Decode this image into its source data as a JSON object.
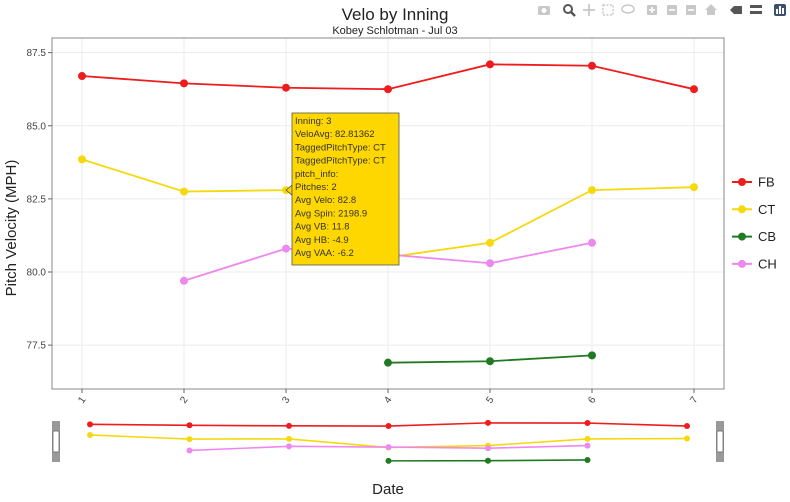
{
  "colors": {
    "FB": "#ee1c1c",
    "CT": "#f5d90e",
    "CB": "#217a21",
    "CH": "#ee88ee",
    "tooltip_bg": "#ffd700",
    "grid": "#ebebeb",
    "panel_border": "#888888"
  },
  "modebar_icons": [
    "camera-icon",
    "zoom-icon",
    "pan-icon",
    "box-select-icon",
    "lasso-icon",
    "zoom-in-icon",
    "zoom-out-icon",
    "autoscale-icon",
    "home-icon",
    "spike-icon",
    "compare-icon",
    "plotly-logo-icon"
  ],
  "chart_data": {
    "type": "line",
    "title": "Velo by Inning",
    "subtitle": "Kobey Schlotman - Jul 03",
    "xlabel": "Date",
    "ylabel": "Pitch Velocity (MPH)",
    "x": [
      1,
      2,
      3,
      4,
      5,
      6,
      7
    ],
    "x_tick_labels": [
      "1",
      "2",
      "3",
      "4",
      "5",
      "6",
      "7"
    ],
    "ylim": [
      76.0,
      88.0
    ],
    "y_ticks": [
      77.5,
      80.0,
      82.5,
      85.0,
      87.5
    ],
    "y_tick_labels": [
      "77.5",
      "80.0",
      "82.5",
      "85.0",
      "87.5"
    ],
    "grid": true,
    "legend_position": "right",
    "series": [
      {
        "name": "FB",
        "x": [
          1,
          2,
          3,
          4,
          5,
          6,
          7
        ],
        "values": [
          86.7,
          86.45,
          86.3,
          86.25,
          87.1,
          87.05,
          86.25
        ]
      },
      {
        "name": "CT",
        "x": [
          1,
          2,
          3,
          4,
          5,
          6,
          7
        ],
        "values": [
          83.85,
          82.75,
          82.8,
          80.5,
          81.0,
          82.8,
          82.9
        ]
      },
      {
        "name": "CB",
        "x": [
          4,
          5,
          6
        ],
        "values": [
          76.9,
          76.95,
          77.15
        ]
      },
      {
        "name": "CH",
        "x": [
          2,
          3,
          4,
          5,
          6
        ],
        "values": [
          79.7,
          80.8,
          80.6,
          80.3,
          81.0
        ]
      }
    ],
    "hover_point": {
      "series": "CT",
      "x": 3,
      "y": 82.8
    },
    "tooltip_lines": [
      "Inning: 3",
      "VeloAvg: 82.81362",
      "TaggedPitchType: CT",
      "TaggedPitchType: CT",
      "pitch_info:",
      "Pitches:  2",
      "Avg Velo: 82.8",
      "Avg Spin: 2198.9",
      "Avg VB: 11.8",
      "Avg HB: -4.9",
      "Avg VAA: -6.2"
    ]
  }
}
